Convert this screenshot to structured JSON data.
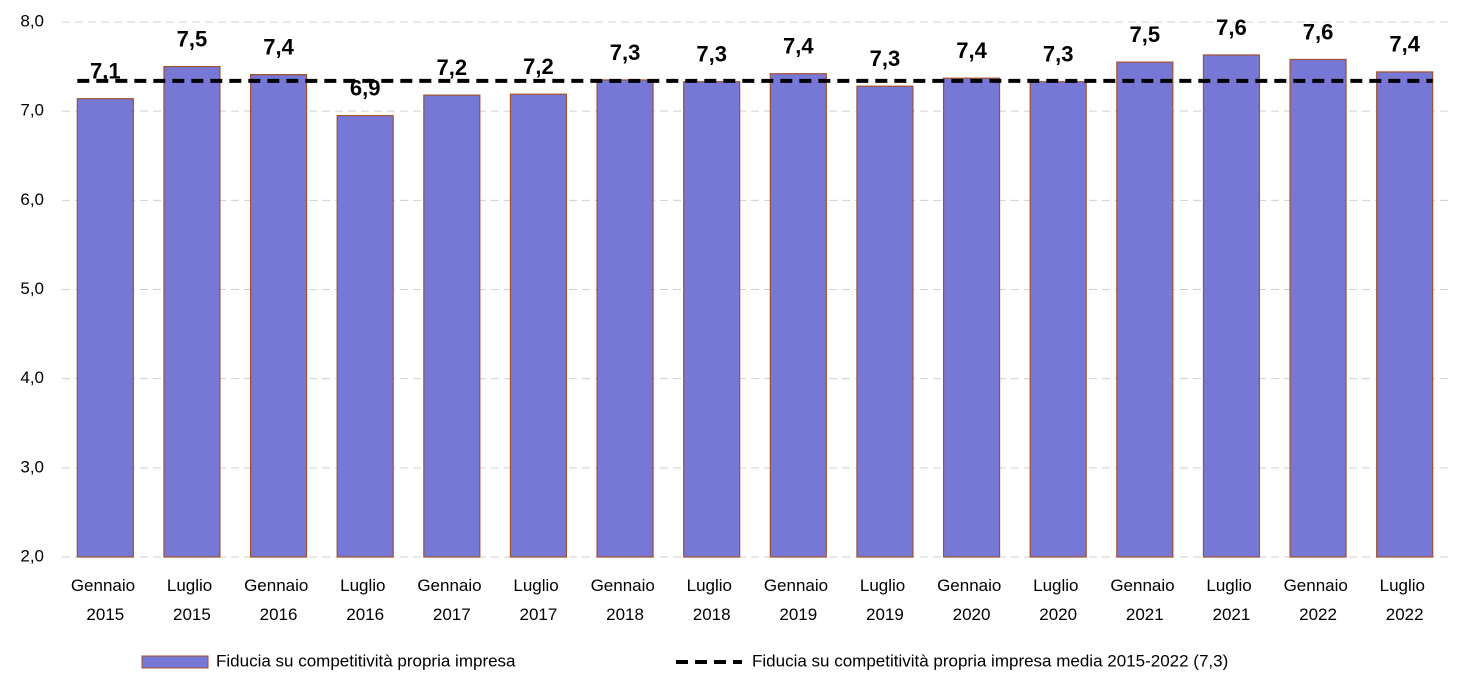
{
  "chart_data": {
    "type": "bar",
    "categories": [
      "Gennaio 2015",
      "Luglio 2015",
      "Gennaio 2016",
      "Luglio 2016",
      "Gennaio 2017",
      "Luglio 2017",
      "Gennaio 2018",
      "Luglio 2018",
      "Gennaio 2019",
      "Luglio 2019",
      "Gennaio 2020",
      "Luglio 2020",
      "Gennaio 2021",
      "Luglio 2021",
      "Gennaio 2022",
      "Luglio 2022"
    ],
    "series": [
      {
        "name": "Fiducia su competitività propria impresa",
        "type": "bar",
        "color": "#7777d6",
        "edge_color": "#a0522d",
        "values": [
          7.14,
          7.5,
          7.41,
          6.95,
          7.18,
          7.19,
          7.35,
          7.33,
          7.42,
          7.28,
          7.37,
          7.33,
          7.55,
          7.63,
          7.58,
          7.44
        ],
        "value_labels": [
          "7,1",
          "7,5",
          "7,4",
          "6,9",
          "7,2",
          "7,2",
          "7,3",
          "7,3",
          "7,4",
          "7,3",
          "7,4",
          "7,3",
          "7,5",
          "7,6",
          "7,6",
          "7,4"
        ]
      },
      {
        "name": "Fiducia su competitività propria impresa media 2015-2022 (7,3)",
        "type": "line",
        "color": "#000000",
        "dashed": true,
        "values": [
          7.34,
          7.34,
          7.34,
          7.34,
          7.34,
          7.34,
          7.34,
          7.34,
          7.34,
          7.34,
          7.34,
          7.34,
          7.34,
          7.34,
          7.34,
          7.34
        ]
      }
    ],
    "ylim": [
      2,
      8
    ],
    "yticks": [
      {
        "value": 2,
        "label": "2,0"
      },
      {
        "value": 3,
        "label": "3,0"
      },
      {
        "value": 4,
        "label": "4,0"
      },
      {
        "value": 5,
        "label": "5,0"
      },
      {
        "value": 6,
        "label": "6,0"
      },
      {
        "value": 7,
        "label": "7,0"
      },
      {
        "value": 8,
        "label": "8,0"
      }
    ],
    "grid": true,
    "legend": "bottom"
  }
}
